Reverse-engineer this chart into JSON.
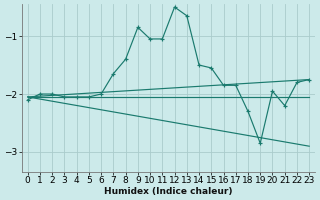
{
  "xlabel": "Humidex (Indice chaleur)",
  "bg_color": "#cceaea",
  "grid_color_major": "#aacccc",
  "grid_color_minor": "#bbdddd",
  "line_color": "#1a7a6e",
  "xlim": [
    -0.5,
    23.5
  ],
  "ylim": [
    -3.35,
    -0.45
  ],
  "yticks": [
    -3,
    -2,
    -1
  ],
  "xticks": [
    0,
    1,
    2,
    3,
    4,
    5,
    6,
    7,
    8,
    9,
    10,
    11,
    12,
    13,
    14,
    15,
    16,
    17,
    18,
    19,
    20,
    21,
    22,
    23
  ],
  "series_main": {
    "x": [
      0,
      1,
      2,
      3,
      4,
      5,
      6,
      7,
      8,
      9,
      10,
      11,
      12,
      13,
      14,
      15,
      16,
      17,
      18,
      19,
      20,
      21,
      22,
      23
    ],
    "y": [
      -2.1,
      -2.0,
      -2.0,
      -2.05,
      -2.05,
      -2.05,
      -2.0,
      -1.65,
      -1.4,
      -0.85,
      -1.05,
      -1.05,
      -0.5,
      -0.65,
      -1.5,
      -1.55,
      -1.85,
      -1.85,
      -2.3,
      -2.85,
      -1.95,
      -2.2,
      -1.8,
      -1.75
    ]
  },
  "series_lines": [
    {
      "x": [
        0,
        23
      ],
      "y": [
        -2.05,
        -2.05
      ]
    },
    {
      "x": [
        0,
        23
      ],
      "y": [
        -2.05,
        -2.9
      ]
    },
    {
      "x": [
        0,
        23
      ],
      "y": [
        -2.05,
        -1.75
      ]
    }
  ]
}
